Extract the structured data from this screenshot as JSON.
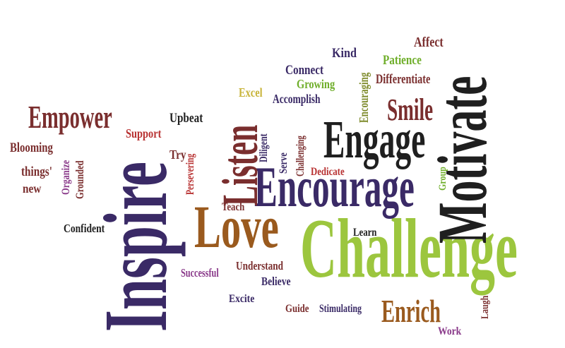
{
  "colors": {
    "dark": "#1f1f1f",
    "purple": "#3a2a66",
    "maroon": "#7a2e2e",
    "brown": "#9a5a1e",
    "green": "#6fae2a",
    "lightgreen": "#9cc63e",
    "violet": "#8a3a8a",
    "red": "#b83232",
    "olive": "#7d8a2a",
    "yellow": "#c8b43a"
  },
  "words": [
    {
      "key": "inspire",
      "text": "Inspire",
      "color": "purple"
    },
    {
      "key": "challenge",
      "text": "Challenge",
      "color": "lightgreen"
    },
    {
      "key": "motivate",
      "text": "Motivate",
      "color": "dark"
    },
    {
      "key": "encourage",
      "text": "Encourage",
      "color": "purple"
    },
    {
      "key": "engage",
      "text": "Engage",
      "color": "dark"
    },
    {
      "key": "love",
      "text": "Love",
      "color": "brown"
    },
    {
      "key": "listen",
      "text": "Listen",
      "color": "maroon"
    },
    {
      "key": "empower",
      "text": "Empower",
      "color": "maroon"
    },
    {
      "key": "smile",
      "text": "Smile",
      "color": "maroon"
    },
    {
      "key": "enrich",
      "text": "Enrich",
      "color": "brown"
    },
    {
      "key": "affect",
      "text": "Affect",
      "color": "maroon"
    },
    {
      "key": "kind",
      "text": "Kind",
      "color": "purple"
    },
    {
      "key": "patience",
      "text": "Patience",
      "color": "green"
    },
    {
      "key": "connect",
      "text": "Connect",
      "color": "purple"
    },
    {
      "key": "differentiate",
      "text": "Differentiate",
      "color": "maroon"
    },
    {
      "key": "encouraging",
      "text": "Encouraging",
      "color": "olive"
    },
    {
      "key": "growing",
      "text": "Growing",
      "color": "green"
    },
    {
      "key": "excel",
      "text": "Excel",
      "color": "yellow"
    },
    {
      "key": "accomplish",
      "text": "Accomplish",
      "color": "purple"
    },
    {
      "key": "upbeat",
      "text": "Upbeat",
      "color": "dark"
    },
    {
      "key": "support",
      "text": "Support",
      "color": "red"
    },
    {
      "key": "blooming",
      "text": "Blooming",
      "color": "maroon"
    },
    {
      "key": "things",
      "text": "things'",
      "color": "maroon"
    },
    {
      "key": "new",
      "text": "new",
      "color": "maroon"
    },
    {
      "key": "organize",
      "text": "Organize",
      "color": "violet"
    },
    {
      "key": "grounded",
      "text": "Grounded",
      "color": "maroon"
    },
    {
      "key": "try",
      "text": "Try",
      "color": "maroon"
    },
    {
      "key": "persevering",
      "text": "Persevering",
      "color": "red"
    },
    {
      "key": "diligent",
      "text": "Diligent",
      "color": "purple"
    },
    {
      "key": "serve",
      "text": "Serve",
      "color": "purple"
    },
    {
      "key": "challenging",
      "text": "Challenging",
      "color": "maroon"
    },
    {
      "key": "dedicate",
      "text": "Dedicate",
      "color": "red"
    },
    {
      "key": "group",
      "text": "Group",
      "color": "green"
    },
    {
      "key": "teach",
      "text": "Teach",
      "color": "maroon"
    },
    {
      "key": "confident",
      "text": "Confident",
      "color": "dark"
    },
    {
      "key": "learn",
      "text": "Learn",
      "color": "dark"
    },
    {
      "key": "successful",
      "text": "Successful",
      "color": "violet"
    },
    {
      "key": "understand",
      "text": "Understand",
      "color": "maroon"
    },
    {
      "key": "believe",
      "text": "Believe",
      "color": "purple"
    },
    {
      "key": "excite",
      "text": "Excite",
      "color": "purple"
    },
    {
      "key": "guide",
      "text": "Guide",
      "color": "maroon"
    },
    {
      "key": "stimulating",
      "text": "Stimulating",
      "color": "purple"
    },
    {
      "key": "laugh",
      "text": "Laugh",
      "color": "maroon"
    },
    {
      "key": "work",
      "text": "Work",
      "color": "violet"
    }
  ]
}
